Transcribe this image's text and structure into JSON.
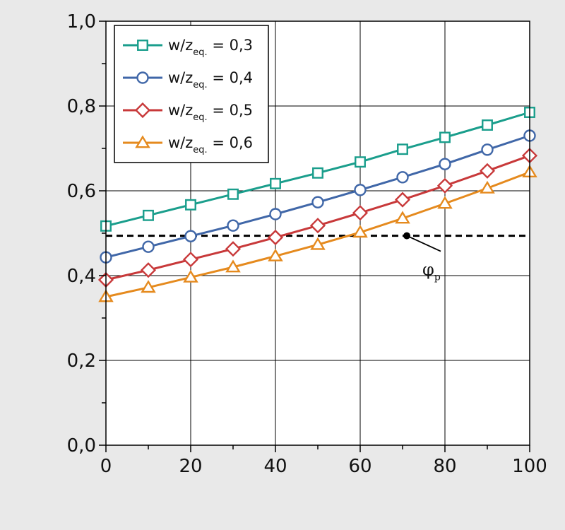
{
  "chart_data": {
    "type": "line",
    "title": "",
    "xlabel": "",
    "ylabel": "",
    "xlim": [
      0,
      100
    ],
    "ylim": [
      0.0,
      1.0
    ],
    "x_ticks": [
      0,
      20,
      40,
      60,
      80,
      100
    ],
    "x_tick_labels": [
      "0",
      "20",
      "40",
      "60",
      "80",
      "100"
    ],
    "y_ticks": [
      0.0,
      0.2,
      0.4,
      0.6,
      0.8,
      1.0
    ],
    "y_tick_labels": [
      "0,0",
      "0,2",
      "0,4",
      "0,6",
      "0,8",
      "1,0"
    ],
    "grid": true,
    "legend_position": "top-left",
    "x": [
      0,
      10,
      20,
      30,
      40,
      50,
      60,
      70,
      80,
      90,
      100
    ],
    "series": [
      {
        "label_main": "w/z",
        "label_sub": "eq.",
        "label_tail": " = 0,3",
        "marker": "square",
        "color": "#1a9e8c",
        "values": [
          0.517,
          0.542,
          0.567,
          0.592,
          0.617,
          0.642,
          0.668,
          0.698,
          0.726,
          0.755,
          0.785
        ]
      },
      {
        "label_main": "w/z",
        "label_sub": "eq.",
        "label_tail": " = 0,4",
        "marker": "circle",
        "color": "#4067a8",
        "values": [
          0.443,
          0.468,
          0.493,
          0.518,
          0.545,
          0.573,
          0.602,
          0.632,
          0.663,
          0.697,
          0.73
        ]
      },
      {
        "label_main": "w/z",
        "label_sub": "eq.",
        "label_tail": " = 0,5",
        "marker": "diamond",
        "color": "#c8393a",
        "values": [
          0.39,
          0.413,
          0.438,
          0.463,
          0.49,
          0.518,
          0.548,
          0.579,
          0.612,
          0.647,
          0.683
        ]
      },
      {
        "label_main": "w/z",
        "label_sub": "eq.",
        "label_tail": " = 0,6",
        "marker": "triangle",
        "color": "#e58a1e",
        "values": [
          0.35,
          0.372,
          0.396,
          0.42,
          0.446,
          0.473,
          0.502,
          0.535,
          0.57,
          0.606,
          0.644
        ]
      }
    ],
    "reference_line": {
      "y": 0.494,
      "style": "dashed",
      "color": "#000000"
    },
    "annotation": {
      "label_main": "φ",
      "label_sub": "p",
      "point_x": 71,
      "point_y": 0.494
    }
  }
}
